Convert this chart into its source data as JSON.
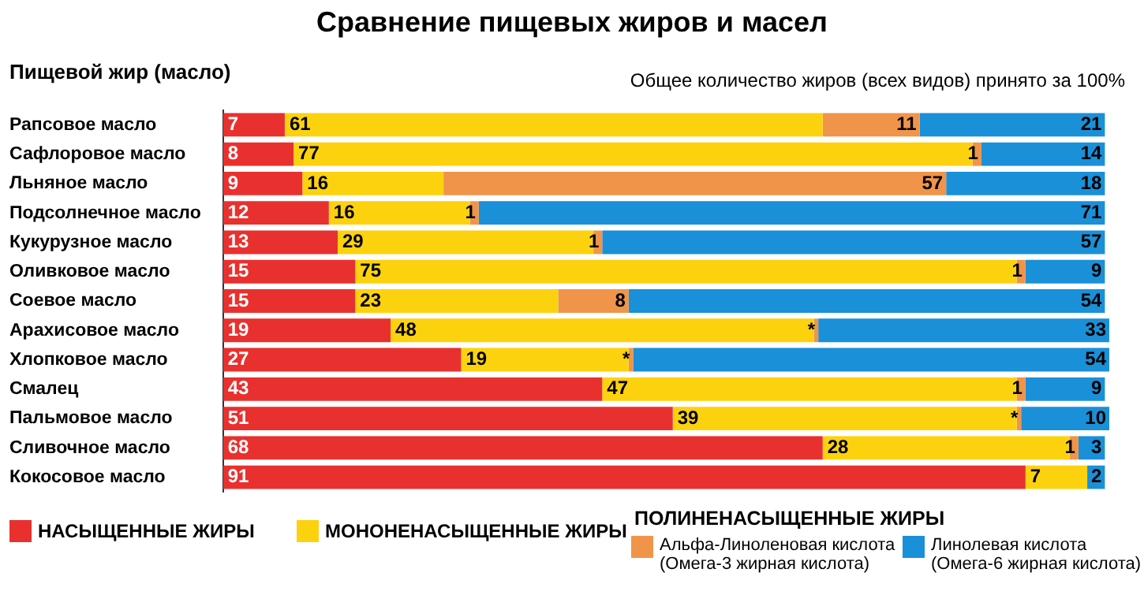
{
  "chart_data": {
    "type": "bar",
    "orientation": "horizontal",
    "stacked": true,
    "title": "Сравнение пищевых жиров и масел",
    "ylabel": "Пищевой жир (масло)",
    "annotations": [
      "Общее количество жиров (всех видов) принято за 100%",
      "ПОЛИНЕНАСЫЩЕННЫЕ ЖИРЫ"
    ],
    "categories": [
      "Рапсовое масло",
      "Сафлоровое масло",
      "Льняное масло",
      "Подсолнечное масло",
      "Кукурузное масло",
      "Оливковое масло",
      "Соевое масло",
      "Арахисовое масло",
      "Хлопковое масло",
      "Смалец",
      "Пальмовое масло",
      "Сливочное масло",
      "Кокосовое масло"
    ],
    "legend": "bottom",
    "series": [
      {
        "name": "НАСЫЩЕННЫЕ ЖИРЫ",
        "color": "#e8312f",
        "values": [
          7,
          8,
          9,
          12,
          13,
          15,
          15,
          19,
          27,
          43,
          51,
          68,
          91
        ],
        "value_labels": [
          "7",
          "8",
          "9",
          "12",
          "13",
          "15",
          "15",
          "19",
          "27",
          "43",
          "51",
          "68",
          "91"
        ]
      },
      {
        "name": "МОНОНЕНАСЫЩЕННЫЕ ЖИРЫ",
        "color": "#fcd20f",
        "values": [
          61,
          77,
          16,
          16,
          29,
          75,
          23,
          48,
          19,
          47,
          39,
          28,
          7
        ],
        "value_labels": [
          "61",
          "77",
          "16",
          "16",
          "29",
          "75",
          "23",
          "48",
          "19",
          "47",
          "39",
          "28",
          "7"
        ]
      },
      {
        "name": "Альфа-Линоленовая кислота (Омега-3 жирная кислота)",
        "color": "#f0944a",
        "values": [
          11,
          1,
          57,
          1,
          1,
          1,
          8,
          0.5,
          0.5,
          1,
          0.5,
          1,
          null
        ],
        "value_labels": [
          "11",
          "1",
          "57",
          "1",
          "1",
          "1",
          "8",
          "*",
          "*",
          "1",
          "*",
          "1",
          null
        ]
      },
      {
        "name": "Линолевая кислота (Омега-6 жирная кислота)",
        "color": "#1a90d8",
        "values": [
          21,
          14,
          18,
          71,
          57,
          9,
          54,
          33,
          54,
          9,
          10,
          3,
          2
        ],
        "value_labels": [
          "21",
          "14",
          "18",
          "71",
          "57",
          "9",
          "54",
          "33",
          "54",
          "9",
          "10",
          "3",
          "2"
        ]
      }
    ]
  }
}
